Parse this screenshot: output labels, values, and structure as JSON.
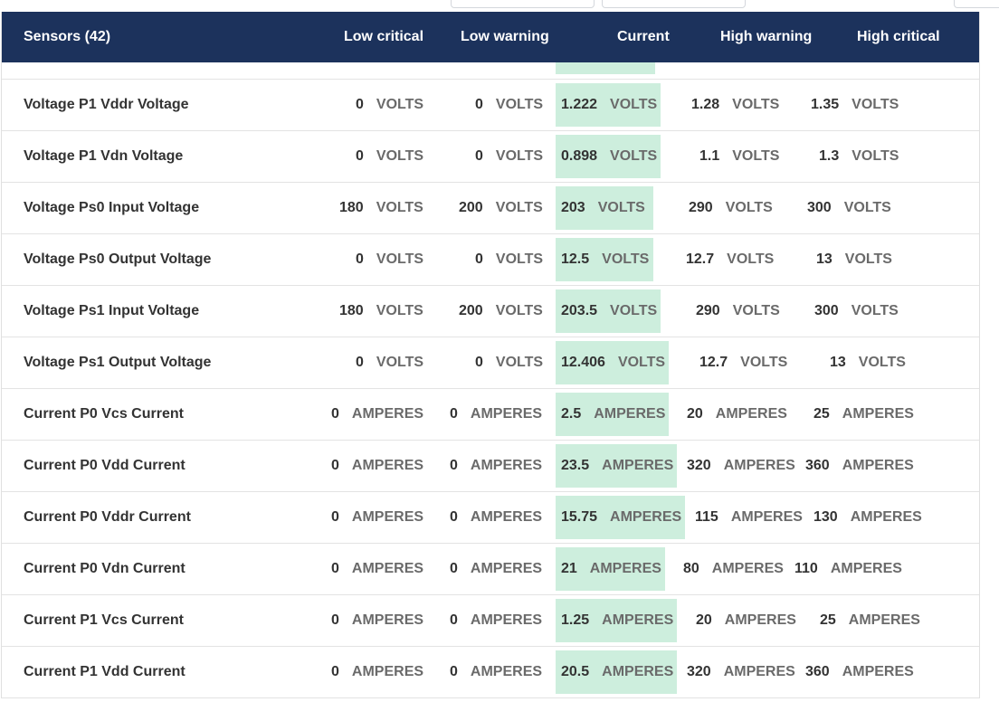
{
  "header": {
    "title": "Sensors (42)",
    "col_low_critical": "Low critical",
    "col_low_warning": "Low warning",
    "col_current": "Current",
    "col_high_warning": "High warning",
    "col_high_critical": "High critical"
  },
  "rows": [
    {
      "name": "Voltage P1 Vddr Voltage",
      "lc": "0",
      "lw": "0",
      "cur": "1.222",
      "hw": "1.28",
      "hc": "1.35",
      "unit": "VOLTS"
    },
    {
      "name": "Voltage P1 Vdn Voltage",
      "lc": "0",
      "lw": "0",
      "cur": "0.898",
      "hw": "1.1",
      "hc": "1.3",
      "unit": "VOLTS"
    },
    {
      "name": "Voltage Ps0 Input Voltage",
      "lc": "180",
      "lw": "200",
      "cur": "203",
      "hw": "290",
      "hc": "300",
      "unit": "VOLTS"
    },
    {
      "name": "Voltage Ps0 Output Voltage",
      "lc": "0",
      "lw": "0",
      "cur": "12.5",
      "hw": "12.7",
      "hc": "13",
      "unit": "VOLTS"
    },
    {
      "name": "Voltage Ps1 Input Voltage",
      "lc": "180",
      "lw": "200",
      "cur": "203.5",
      "hw": "290",
      "hc": "300",
      "unit": "VOLTS"
    },
    {
      "name": "Voltage Ps1 Output Voltage",
      "lc": "0",
      "lw": "0",
      "cur": "12.406",
      "hw": "12.7",
      "hc": "13",
      "unit": "VOLTS"
    },
    {
      "name": "Current P0 Vcs Current",
      "lc": "0",
      "lw": "0",
      "cur": "2.5",
      "hw": "20",
      "hc": "25",
      "unit": "AMPERES"
    },
    {
      "name": "Current P0 Vdd Current",
      "lc": "0",
      "lw": "0",
      "cur": "23.5",
      "hw": "320",
      "hc": "360",
      "unit": "AMPERES"
    },
    {
      "name": "Current P0 Vddr Current",
      "lc": "0",
      "lw": "0",
      "cur": "15.75",
      "hw": "115",
      "hc": "130",
      "unit": "AMPERES"
    },
    {
      "name": "Current P0 Vdn Current",
      "lc": "0",
      "lw": "0",
      "cur": "21",
      "hw": "80",
      "hc": "110",
      "unit": "AMPERES"
    },
    {
      "name": "Current P1 Vcs Current",
      "lc": "0",
      "lw": "0",
      "cur": "1.25",
      "hw": "20",
      "hc": "25",
      "unit": "AMPERES"
    },
    {
      "name": "Current P1 Vdd Current",
      "lc": "0",
      "lw": "0",
      "cur": "20.5",
      "hw": "320",
      "hc": "360",
      "unit": "AMPERES"
    }
  ]
}
